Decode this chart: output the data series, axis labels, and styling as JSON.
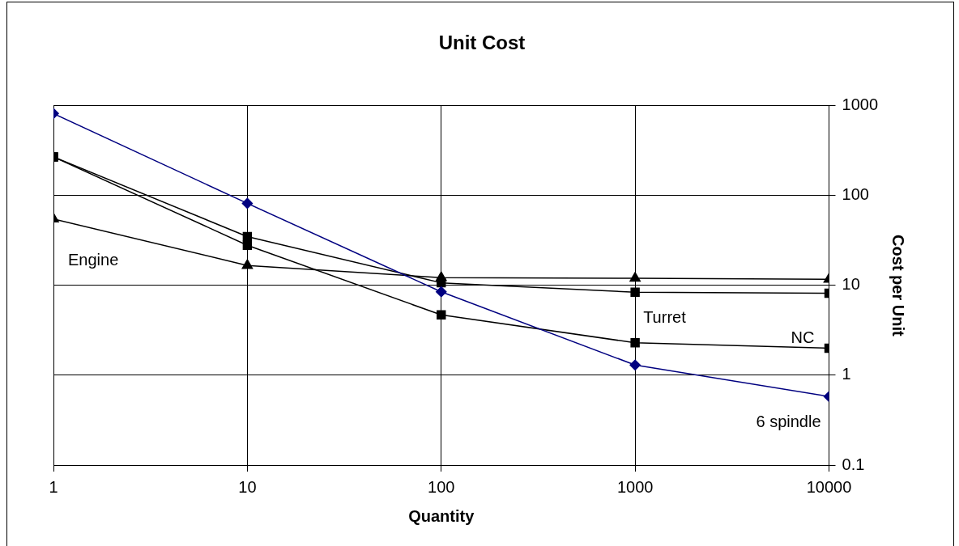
{
  "chart_data": {
    "type": "line",
    "title": "Unit Cost",
    "xlabel": "Quantity",
    "ylabel": "Cost per Unit",
    "log": "xy",
    "grid": true,
    "legend": false,
    "x": [
      1,
      10,
      100,
      1000,
      10000
    ],
    "xlim": [
      1,
      10000
    ],
    "xticks": [
      1,
      10,
      100,
      1000,
      10000
    ],
    "ylim": [
      0.1,
      1000
    ],
    "yticks": [
      0.1,
      1,
      10,
      100,
      1000
    ],
    "series": [
      {
        "name": "6 spindle",
        "color": "#000080",
        "marker": "diamond",
        "values": [
          820,
          82,
          8.5,
          1.3,
          0.58
        ]
      },
      {
        "name": "Turret",
        "color": "#000000",
        "marker": "square",
        "values": [
          270,
          35,
          10.7,
          8.4,
          8.2
        ]
      },
      {
        "name": "NC",
        "color": "#000000",
        "marker": "square",
        "values": [
          270,
          28,
          4.7,
          2.3,
          2.0
        ]
      },
      {
        "name": "Engine",
        "color": "#000000",
        "marker": "triangle",
        "values": [
          55,
          16.7,
          12.2,
          12,
          11.7
        ]
      }
    ]
  }
}
